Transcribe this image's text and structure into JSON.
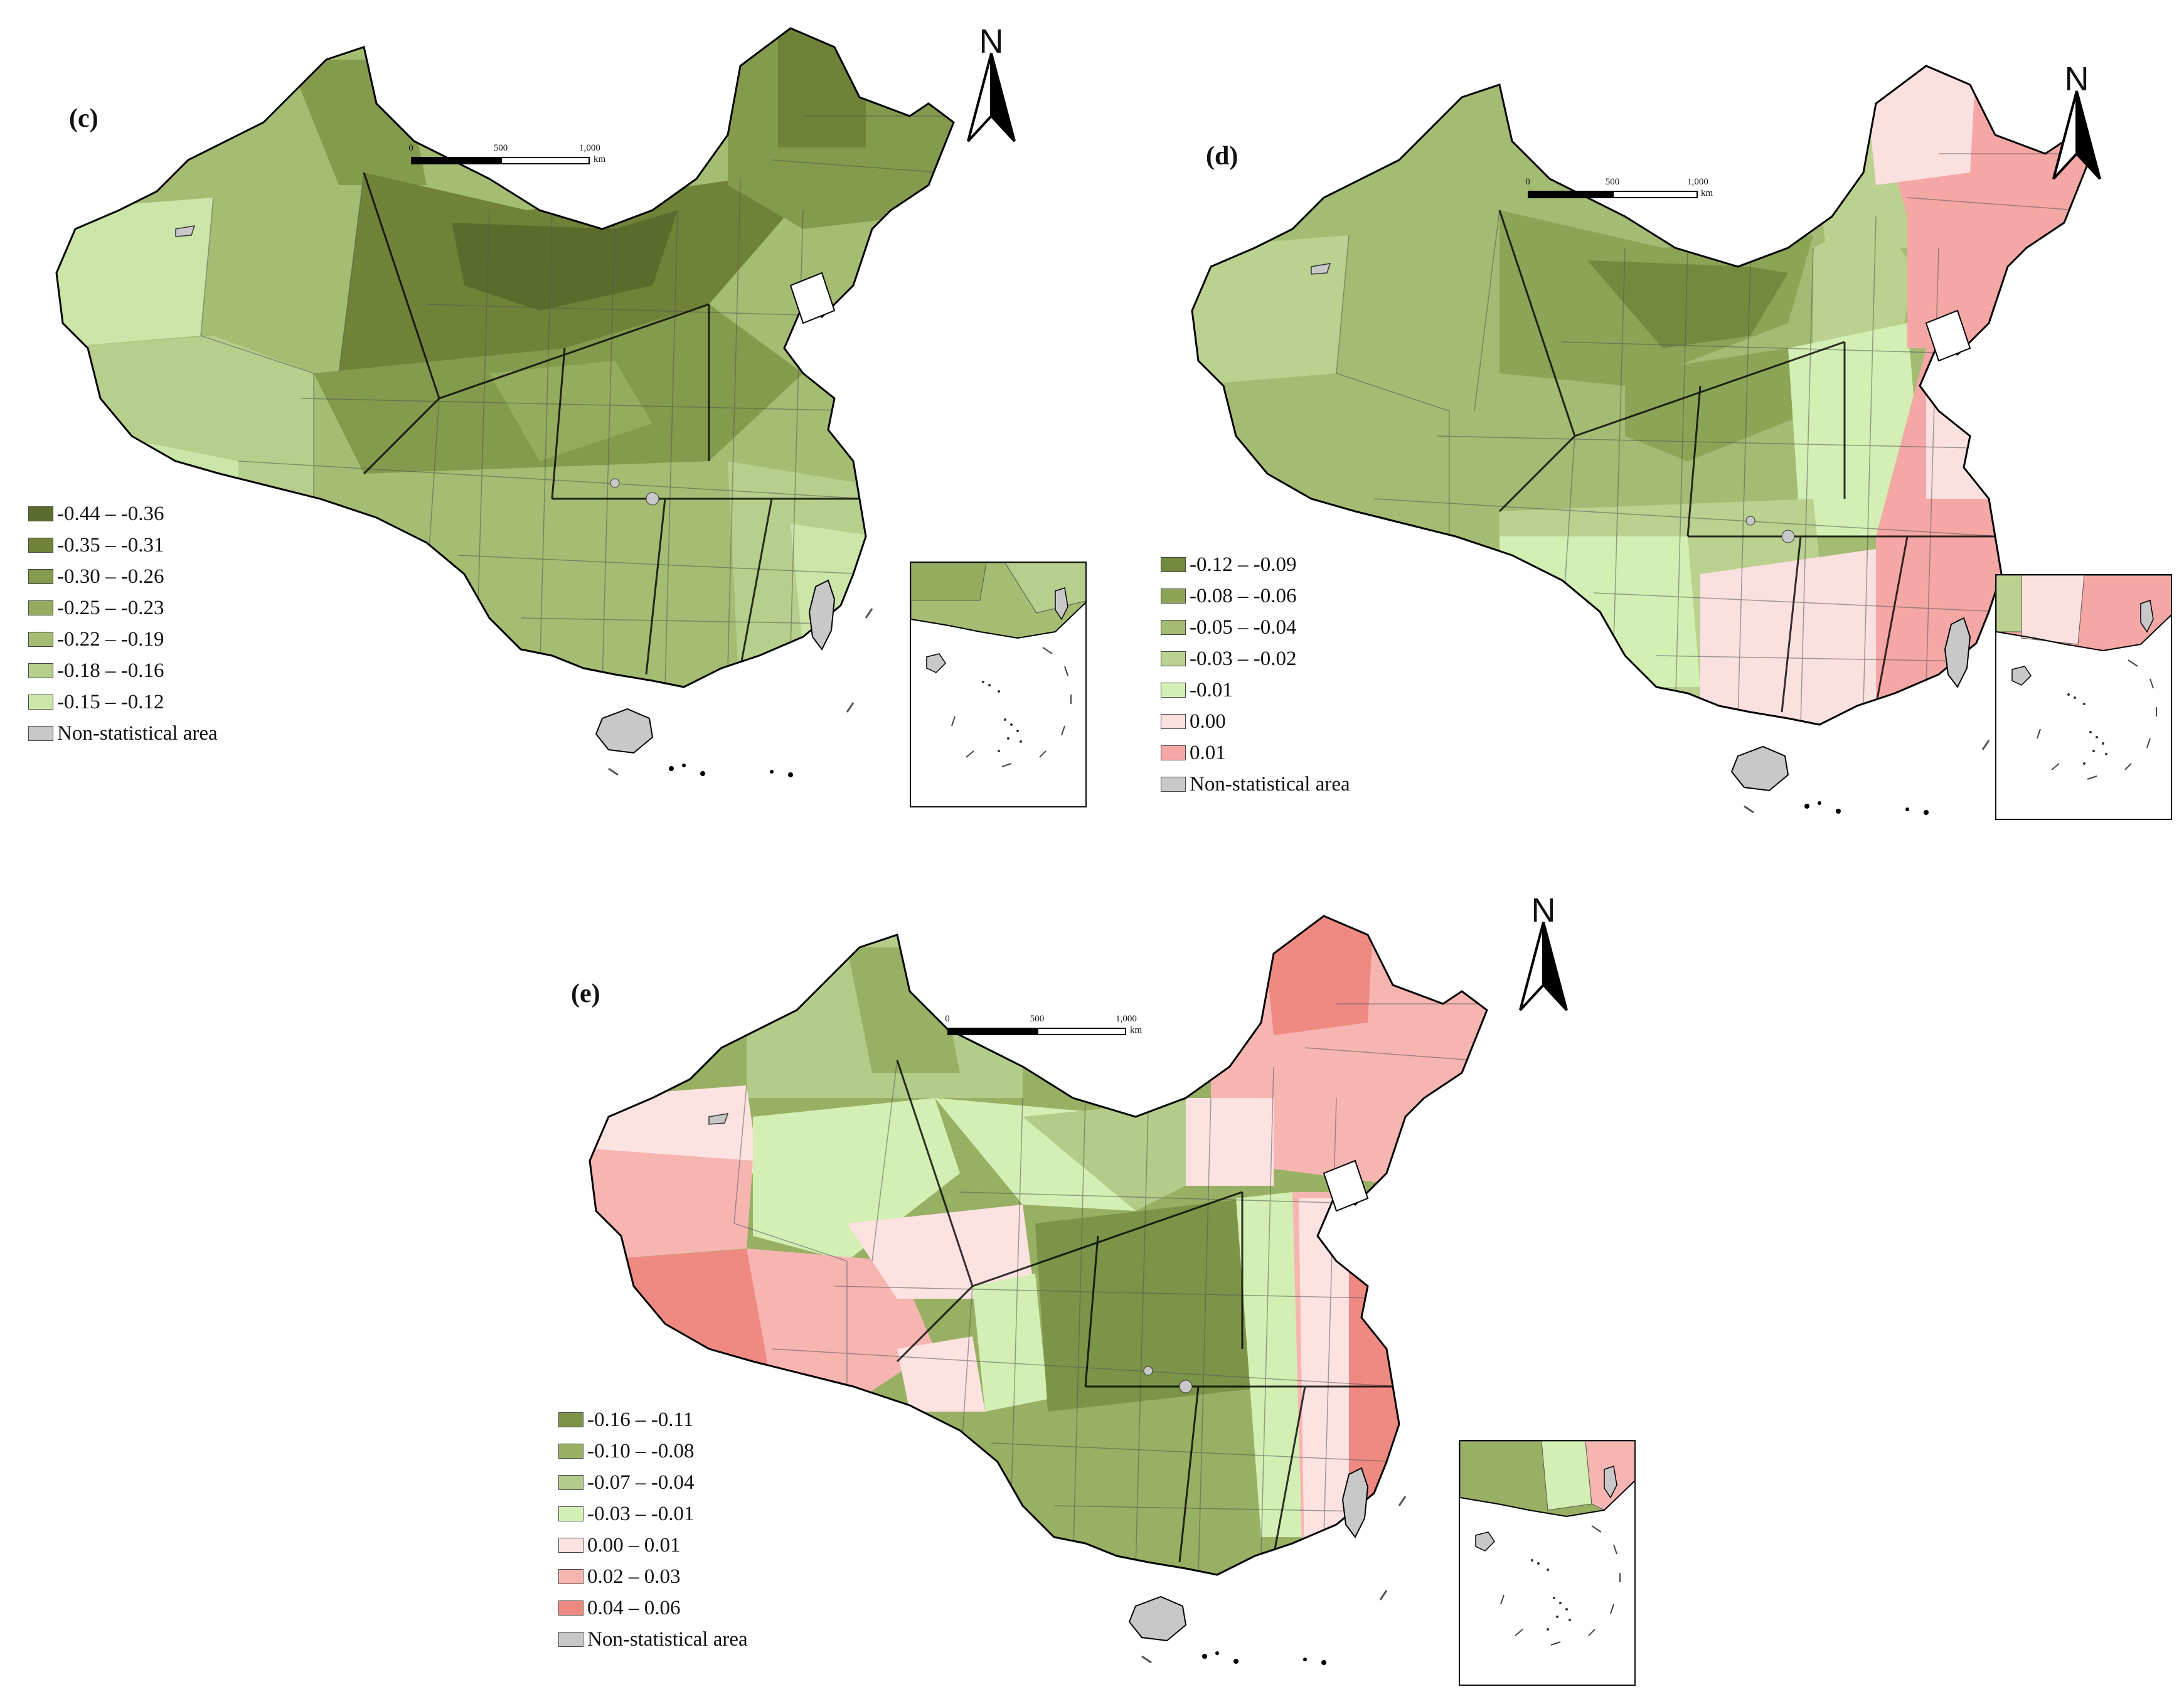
{
  "panels": [
    {
      "id": "c",
      "label": "(c)",
      "north": "N",
      "scale": {
        "ticks": [
          "0",
          "500",
          "1,000"
        ],
        "unit": "km"
      },
      "legend": [
        {
          "text": "-0.44 – -0.36",
          "color": "#5a6b2c"
        },
        {
          "text": "-0.35 – -0.31",
          "color": "#6f8238"
        },
        {
          "text": "-0.30 – -0.26",
          "color": "#849a4c"
        },
        {
          "text": "-0.25 – -0.23",
          "color": "#95ab5e"
        },
        {
          "text": "-0.22 – -0.19",
          "color": "#a4bd72"
        },
        {
          "text": "-0.18 – -0.16",
          "color": "#b6cf8c"
        },
        {
          "text": "-0.15 – -0.12",
          "color": "#cbe6a8"
        },
        {
          "text": "Non-statistical area",
          "color": "#c8c8c8"
        }
      ]
    },
    {
      "id": "d",
      "label": "(d)",
      "north": "N",
      "scale": {
        "ticks": [
          "0",
          "500",
          "1,000"
        ],
        "unit": "km"
      },
      "legend": [
        {
          "text": "-0.12 – -0.09",
          "color": "#728a3e"
        },
        {
          "text": "-0.08 – -0.06",
          "color": "#8ca456"
        },
        {
          "text": "-0.05 – -0.04",
          "color": "#a3bb72"
        },
        {
          "text": "-0.03 – -0.02",
          "color": "#bad18f"
        },
        {
          "text": "-0.01",
          "color": "#d3efb4"
        },
        {
          "text": "0.00",
          "color": "#fbe0e0"
        },
        {
          "text": "0.01",
          "color": "#f4a7a4"
        },
        {
          "text": "Non-statistical area",
          "color": "#c8c8c8"
        }
      ]
    },
    {
      "id": "e",
      "label": "(e)",
      "north": "N",
      "scale": {
        "ticks": [
          "0",
          "500",
          "1,000"
        ],
        "unit": "km"
      },
      "legend": [
        {
          "text": "-0.16 – -0.11",
          "color": "#7b9448"
        },
        {
          "text": "-0.10 – -0.08",
          "color": "#98b063"
        },
        {
          "text": "-0.07 – -0.04",
          "color": "#b4cc8a"
        },
        {
          "text": "-0.03 – -0.01",
          "color": "#d3efb4"
        },
        {
          "text": "0.00 – 0.01",
          "color": "#fde2e2"
        },
        {
          "text": "0.02 – 0.03",
          "color": "#f7b5b2"
        },
        {
          "text": "0.04 – 0.06",
          "color": "#ef8a82"
        },
        {
          "text": "Non-statistical area",
          "color": "#c8c8c8"
        }
      ]
    }
  ]
}
